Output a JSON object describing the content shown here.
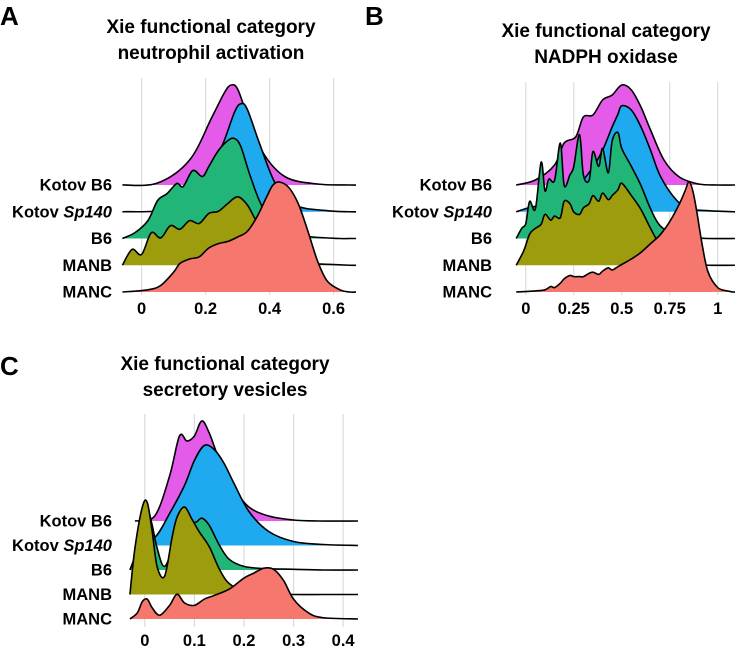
{
  "colors": {
    "Kotov B6": "#E35BE8",
    "Kotov Sp140": "#1FA9EE",
    "B6": "#22B578",
    "MANB": "#9C9C0C",
    "MANC": "#F5776D",
    "grid": "#dcdcdc",
    "outline": "#000000"
  },
  "chart_data": [
    {
      "type": "ridgeline",
      "panel": "A",
      "title_line1": "Xie functional category",
      "title_line2": "neutrophil activation",
      "xlim": [
        -0.08,
        0.67
      ],
      "ticks": [
        0,
        0.2,
        0.4,
        0.6
      ],
      "tick_labels": [
        "0",
        "0.2",
        "0.4",
        "0.6"
      ],
      "groups": [
        {
          "label": "Kotov B6",
          "label_main": "Kotov B6",
          "label_italic": "",
          "xs": [
            -0.06,
            0.05,
            0.15,
            0.22,
            0.26,
            0.28,
            0.3,
            0.33,
            0.38,
            0.45,
            0.55,
            0.65
          ],
          "ys": [
            0,
            0.02,
            0.25,
            0.68,
            0.93,
            1.0,
            0.96,
            0.7,
            0.32,
            0.08,
            0.01,
            0
          ]
        },
        {
          "label": "Kotov Sp140",
          "label_main": "Kotov ",
          "label_italic": "Sp140",
          "xs": [
            -0.06,
            0.08,
            0.18,
            0.25,
            0.29,
            0.31,
            0.33,
            0.37,
            0.42,
            0.48,
            0.58,
            0.65
          ],
          "ys": [
            0,
            0.02,
            0.18,
            0.6,
            0.92,
            1.0,
            0.95,
            0.62,
            0.25,
            0.06,
            0.01,
            0
          ]
        },
        {
          "label": "B6",
          "label_main": "B6",
          "label_italic": "",
          "xs": [
            -0.06,
            -0.02,
            0.02,
            0.05,
            0.08,
            0.11,
            0.13,
            0.16,
            0.19,
            0.21,
            0.24,
            0.27,
            0.29,
            0.31,
            0.34,
            0.38,
            0.44,
            0.52,
            0.62,
            0.65
          ],
          "ys": [
            0,
            0.06,
            0.18,
            0.38,
            0.45,
            0.55,
            0.52,
            0.68,
            0.62,
            0.72,
            0.88,
            0.98,
            1.0,
            0.92,
            0.62,
            0.3,
            0.08,
            0.02,
            0.0,
            0
          ]
        },
        {
          "label": "MANB",
          "label_main": "MANB",
          "label_italic": "",
          "xs": [
            -0.06,
            -0.03,
            0.0,
            0.03,
            0.06,
            0.09,
            0.12,
            0.15,
            0.18,
            0.21,
            0.24,
            0.27,
            0.3,
            0.33,
            0.36,
            0.4,
            0.45,
            0.52,
            0.6,
            0.65
          ],
          "ys": [
            0,
            0.22,
            0.15,
            0.45,
            0.38,
            0.55,
            0.5,
            0.62,
            0.58,
            0.72,
            0.75,
            0.86,
            0.95,
            0.84,
            0.6,
            0.32,
            0.12,
            0.03,
            0.01,
            0
          ]
        },
        {
          "label": "MANC",
          "label_main": "MANC",
          "label_italic": "",
          "xs": [
            -0.06,
            0.02,
            0.06,
            0.1,
            0.12,
            0.15,
            0.18,
            0.21,
            0.24,
            0.27,
            0.3,
            0.33,
            0.36,
            0.39,
            0.41,
            0.43,
            0.46,
            0.49,
            0.52,
            0.55,
            0.58,
            0.62,
            0.65
          ],
          "ys": [
            0,
            0.02,
            0.06,
            0.18,
            0.26,
            0.3,
            0.32,
            0.4,
            0.44,
            0.46,
            0.5,
            0.55,
            0.68,
            0.86,
            0.97,
            1.0,
            0.95,
            0.8,
            0.55,
            0.28,
            0.1,
            0.02,
            0
          ]
        }
      ]
    },
    {
      "type": "ridgeline",
      "panel": "B",
      "title_line1": "Xie functional category",
      "title_line2": "NADPH oxidase",
      "xlim": [
        -0.15,
        1.09
      ],
      "ticks": [
        0,
        0.25,
        0.5,
        0.75,
        1
      ],
      "tick_labels": [
        "0",
        "0.25",
        "0.5",
        "0.75",
        "1"
      ],
      "groups": [
        {
          "label": "Kotov B6",
          "label_main": "Kotov B6",
          "label_italic": "",
          "xs": [
            -0.05,
            0.05,
            0.15,
            0.2,
            0.26,
            0.3,
            0.35,
            0.4,
            0.45,
            0.5,
            0.55,
            0.6,
            0.65,
            0.72,
            0.8,
            0.9,
            1.0,
            1.08
          ],
          "ys": [
            0,
            0.05,
            0.2,
            0.42,
            0.48,
            0.68,
            0.7,
            0.85,
            0.9,
            1.0,
            0.95,
            0.78,
            0.55,
            0.25,
            0.08,
            0.01,
            0,
            0
          ]
        },
        {
          "label": "Kotov Sp140",
          "label_main": "Kotov ",
          "label_italic": "Sp140",
          "xs": [
            -0.05,
            0.05,
            0.12,
            0.2,
            0.25,
            0.3,
            0.35,
            0.4,
            0.45,
            0.48,
            0.5,
            0.55,
            0.6,
            0.65,
            0.7,
            0.78,
            0.85,
            0.95,
            1.08
          ],
          "ys": [
            0,
            0.05,
            0.02,
            0.08,
            0.18,
            0.3,
            0.42,
            0.58,
            0.8,
            0.92,
            1.0,
            0.96,
            0.8,
            0.58,
            0.34,
            0.12,
            0.03,
            0.01,
            0
          ]
        },
        {
          "label": "B6",
          "label_main": "B6",
          "label_italic": "",
          "xs": [
            -0.05,
            -0.02,
            0.0,
            0.02,
            0.05,
            0.08,
            0.1,
            0.12,
            0.15,
            0.18,
            0.2,
            0.23,
            0.25,
            0.28,
            0.3,
            0.33,
            0.35,
            0.38,
            0.4,
            0.43,
            0.45,
            0.48,
            0.5,
            0.55,
            0.6,
            0.65,
            0.7,
            0.78,
            0.85,
            0.95
          ],
          "ys": [
            0,
            0.1,
            0.14,
            0.35,
            0.28,
            0.72,
            0.45,
            0.56,
            0.55,
            0.9,
            0.5,
            0.6,
            0.68,
            0.98,
            0.6,
            0.55,
            0.82,
            0.68,
            0.85,
            0.62,
            0.92,
            1.0,
            0.85,
            0.68,
            0.5,
            0.28,
            0.12,
            0.03,
            0.01,
            0
          ]
        },
        {
          "label": "MANB",
          "label_main": "MANB",
          "label_italic": "",
          "xs": [
            -0.05,
            -0.01,
            0.02,
            0.05,
            0.08,
            0.1,
            0.13,
            0.15,
            0.18,
            0.2,
            0.23,
            0.25,
            0.28,
            0.3,
            0.33,
            0.35,
            0.38,
            0.4,
            0.43,
            0.45,
            0.48,
            0.5,
            0.55,
            0.6,
            0.65,
            0.7,
            0.78,
            0.85,
            0.95
          ],
          "ys": [
            0,
            0.18,
            0.38,
            0.45,
            0.5,
            0.62,
            0.55,
            0.6,
            0.58,
            0.78,
            0.75,
            0.65,
            0.62,
            0.7,
            0.75,
            0.85,
            0.78,
            0.88,
            0.8,
            0.85,
            0.92,
            1.0,
            0.85,
            0.68,
            0.45,
            0.25,
            0.08,
            0.02,
            0
          ]
        },
        {
          "label": "MANC",
          "label_main": "MANC",
          "label_italic": "",
          "xs": [
            -0.05,
            0.05,
            0.1,
            0.13,
            0.15,
            0.18,
            0.2,
            0.23,
            0.25,
            0.28,
            0.3,
            0.33,
            0.35,
            0.38,
            0.4,
            0.43,
            0.45,
            0.48,
            0.5,
            0.55,
            0.6,
            0.65,
            0.7,
            0.75,
            0.8,
            0.83,
            0.85,
            0.87,
            0.89,
            0.92,
            0.95,
            1.0,
            1.05,
            1.08
          ],
          "ys": [
            0,
            0.01,
            0.02,
            0.05,
            0.04,
            0.08,
            0.12,
            0.15,
            0.14,
            0.14,
            0.14,
            0.17,
            0.18,
            0.16,
            0.19,
            0.22,
            0.2,
            0.23,
            0.25,
            0.3,
            0.36,
            0.44,
            0.52,
            0.64,
            0.8,
            0.92,
            1.0,
            0.92,
            0.74,
            0.42,
            0.18,
            0.04,
            0.01,
            0
          ]
        }
      ]
    },
    {
      "type": "ridgeline",
      "panel": "C",
      "title_line1": "Xie functional category",
      "title_line2": "secretory vesicles",
      "xlim": [
        -0.05,
        0.43
      ],
      "ticks": [
        0,
        0.1,
        0.2,
        0.3,
        0.4
      ],
      "tick_labels": [
        "0",
        "0.1",
        "0.2",
        "0.3",
        "0.4"
      ],
      "groups": [
        {
          "label": "Kotov B6",
          "label_main": "Kotov B6",
          "label_italic": "",
          "xs": [
            -0.02,
            0.02,
            0.05,
            0.07,
            0.085,
            0.1,
            0.115,
            0.13,
            0.15,
            0.18,
            0.21,
            0.25,
            0.3,
            0.35,
            0.43
          ],
          "ys": [
            0,
            0.05,
            0.45,
            0.85,
            0.8,
            0.85,
            1.0,
            0.88,
            0.62,
            0.33,
            0.14,
            0.05,
            0.01,
            0,
            0
          ]
        },
        {
          "label": "Kotov Sp140",
          "label_main": "Kotov ",
          "label_italic": "Sp140",
          "xs": [
            -0.02,
            0.02,
            0.05,
            0.08,
            0.1,
            0.12,
            0.14,
            0.16,
            0.18,
            0.21,
            0.25,
            0.3,
            0.36,
            0.43
          ],
          "ys": [
            0,
            0.08,
            0.32,
            0.6,
            0.85,
            1.0,
            0.96,
            0.82,
            0.62,
            0.34,
            0.14,
            0.04,
            0.01,
            0
          ]
        },
        {
          "label": "B6",
          "label_main": "B6",
          "label_italic": "",
          "xs": [
            -0.03,
            -0.015,
            -0.005,
            0.005,
            0.015,
            0.025,
            0.04,
            0.06,
            0.08,
            0.1,
            0.115,
            0.13,
            0.15,
            0.17,
            0.2,
            0.24,
            0.3,
            0.36,
            0.43
          ],
          "ys": [
            0,
            0.3,
            0.72,
            0.86,
            0.62,
            0.3,
            0.05,
            0.38,
            0.8,
            0.66,
            0.72,
            0.62,
            0.35,
            0.15,
            0.05,
            0.02,
            0.01,
            0,
            0
          ]
        },
        {
          "label": "MANB",
          "label_main": "MANB",
          "label_italic": "",
          "xs": [
            -0.03,
            -0.02,
            -0.005,
            0.005,
            0.015,
            0.025,
            0.04,
            0.055,
            0.065,
            0.08,
            0.095,
            0.11,
            0.13,
            0.15,
            0.17,
            0.2,
            0.25,
            0.3,
            0.36,
            0.43
          ],
          "ys": [
            0,
            0.5,
            0.95,
            1.0,
            0.68,
            0.3,
            0.2,
            0.62,
            0.84,
            0.95,
            0.82,
            0.68,
            0.52,
            0.28,
            0.12,
            0.04,
            0.01,
            0,
            0,
            0
          ]
        },
        {
          "label": "MANC",
          "label_main": "MANC",
          "label_italic": "",
          "xs": [
            -0.03,
            -0.015,
            -0.005,
            0.005,
            0.015,
            0.03,
            0.05,
            0.065,
            0.08,
            0.1,
            0.12,
            0.14,
            0.17,
            0.2,
            0.22,
            0.24,
            0.26,
            0.28,
            0.3,
            0.33,
            0.36,
            0.43
          ],
          "ys": [
            0,
            0.1,
            0.28,
            0.32,
            0.18,
            0.06,
            0.22,
            0.4,
            0.26,
            0.22,
            0.32,
            0.38,
            0.48,
            0.66,
            0.74,
            0.82,
            0.8,
            0.62,
            0.32,
            0.1,
            0.02,
            0
          ]
        }
      ]
    }
  ]
}
